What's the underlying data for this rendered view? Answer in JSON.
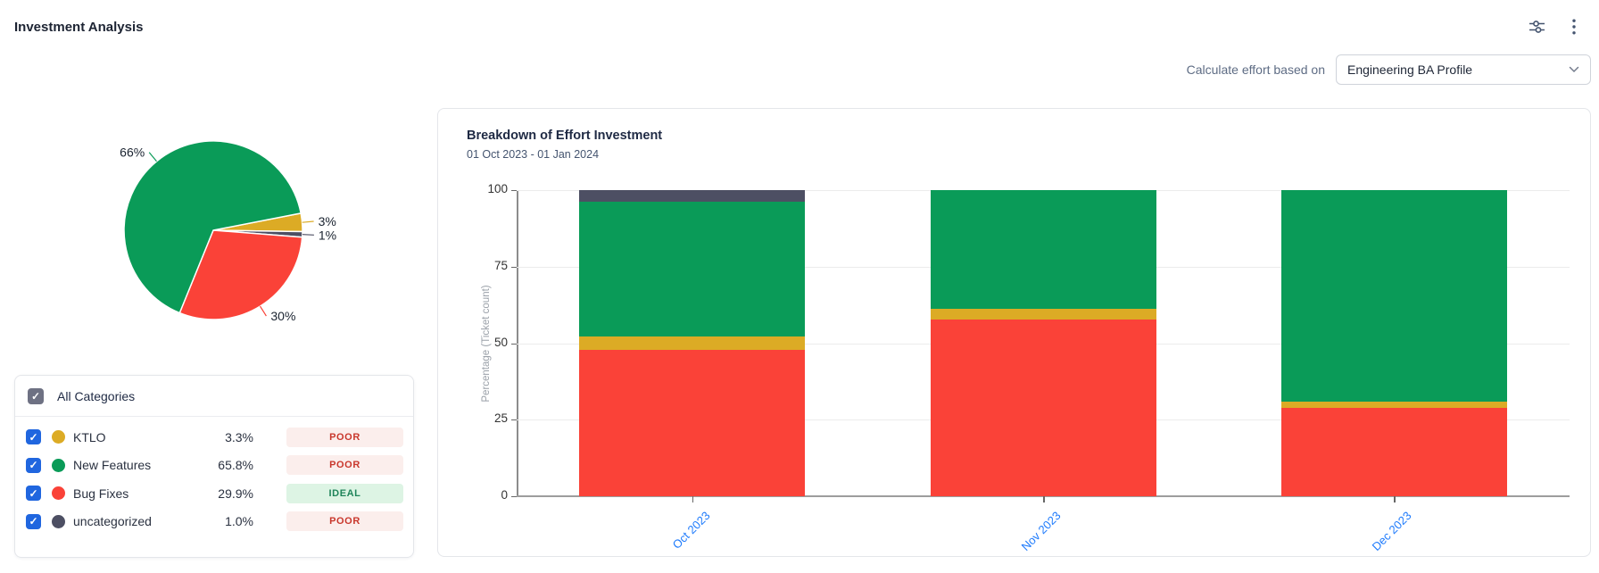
{
  "header": {
    "title": "Investment Analysis"
  },
  "toolbar": {
    "filter_icon": "sliders-icon",
    "more_icon": "kebab-menu-icon"
  },
  "controls": {
    "label": "Calculate effort based on",
    "select_value": "Engineering BA Profile"
  },
  "colors": {
    "ktlo": "#dcab25",
    "new_features": "#0a9b58",
    "bug_fixes": "#fa4238",
    "uncategorized": "#4d4f63",
    "poor_text": "#c9372c",
    "poor_bg": "#fbeeec",
    "ideal_text": "#1f845a",
    "ideal_bg": "#ddf4e4",
    "checkbox_blue": "#2066df",
    "checkbox_gray": "#6e7183",
    "x_label_blue": "#1d7afc"
  },
  "categories_panel": {
    "header": {
      "label": "All Categories",
      "checked": true
    },
    "rows": [
      {
        "label": "KTLO",
        "percent": "3.3%",
        "rating": "POOR",
        "rating_type": "poor",
        "color_key": "ktlo",
        "checked": true
      },
      {
        "label": "New Features",
        "percent": "65.8%",
        "rating": "POOR",
        "rating_type": "poor",
        "color_key": "new_features",
        "checked": true
      },
      {
        "label": "Bug Fixes",
        "percent": "29.9%",
        "rating": "IDEAL",
        "rating_type": "ideal",
        "color_key": "bug_fixes",
        "checked": true
      },
      {
        "label": "uncategorized",
        "percent": "1.0%",
        "rating": "POOR",
        "rating_type": "poor",
        "color_key": "uncategorized",
        "checked": true
      }
    ]
  },
  "bar_card": {
    "title": "Breakdown of Effort Investment",
    "subtitle": "01 Oct 2023 - 01 Jan 2024",
    "ylabel": "Percentage (Ticket count)"
  },
  "chart_data": [
    {
      "type": "pie",
      "start_angle_deg": 11,
      "clockwise": true,
      "slices": [
        {
          "label": "KTLO",
          "value": 3.3,
          "display": "3%",
          "color": "#dcab25"
        },
        {
          "label": "uncategorized",
          "value": 1.0,
          "display": "1%",
          "color": "#4d4f63"
        },
        {
          "label": "Bug Fixes",
          "value": 29.9,
          "display": "30%",
          "color": "#fa4238"
        },
        {
          "label": "New Features",
          "value": 65.8,
          "display": "66%",
          "color": "#0a9b58"
        }
      ]
    },
    {
      "type": "bar",
      "stacked": true,
      "title": "Breakdown of Effort Investment",
      "xlabel": "",
      "ylabel": "Percentage (Ticket count)",
      "ylim": [
        0,
        100
      ],
      "yticks": [
        0,
        25,
        50,
        75,
        100
      ],
      "grid": true,
      "legend": false,
      "categories": [
        "Oct 2023",
        "Nov 2023",
        "Dec 2023"
      ],
      "series": [
        {
          "name": "Bug Fixes",
          "color": "#fa4238",
          "values": [
            47.7,
            57.7,
            28.9
          ]
        },
        {
          "name": "KTLO",
          "color": "#dcab25",
          "values": [
            4.6,
            3.5,
            2.0
          ]
        },
        {
          "name": "New Features",
          "color": "#0a9b58",
          "values": [
            43.9,
            38.8,
            69.1
          ]
        },
        {
          "name": "uncategorized",
          "color": "#4d4f63",
          "values": [
            3.8,
            0.0,
            0.0
          ]
        }
      ]
    }
  ]
}
